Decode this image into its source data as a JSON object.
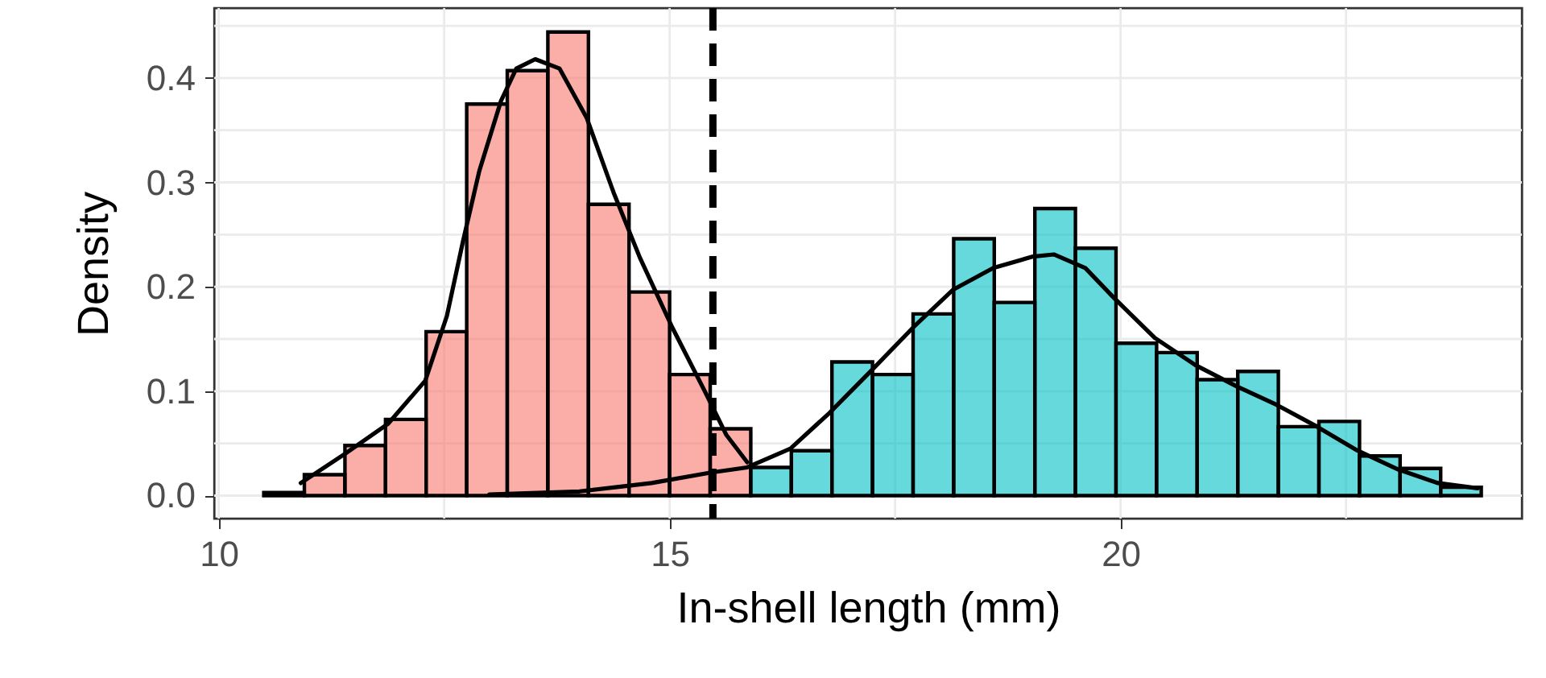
{
  "chart_data": {
    "type": "histogram",
    "xlabel": "In-shell length (mm)",
    "ylabel": "Density",
    "bins": [
      10.5,
      10.95,
      11.4,
      11.85,
      12.3,
      12.75,
      13.2,
      13.65,
      14.1,
      14.55,
      15.0,
      15.45,
      15.9,
      16.35,
      16.8,
      17.25,
      17.7,
      18.15,
      18.6,
      19.05,
      19.5,
      19.95,
      20.4,
      20.85,
      21.3,
      21.75,
      22.2,
      22.65,
      23.1,
      23.55,
      24.0
    ],
    "series": [
      {
        "color": "#f8766d",
        "values": [
          0.003,
          0.02,
          0.048,
          0.073,
          0.157,
          0.375,
          0.407,
          0.444,
          0.279,
          0.195,
          0.116,
          0.064,
          null,
          null,
          null,
          null,
          null,
          null,
          null,
          null,
          null,
          null,
          null,
          null,
          null,
          null,
          null,
          null,
          null,
          null
        ]
      },
      {
        "color": "#00bfc4",
        "values": [
          null,
          null,
          null,
          null,
          null,
          null,
          null,
          null,
          null,
          null,
          null,
          null,
          0.027,
          0.043,
          0.128,
          0.116,
          0.174,
          0.246,
          0.185,
          0.275,
          0.237,
          0.146,
          0.137,
          0.111,
          0.119,
          0.066,
          0.071,
          0.038,
          0.026,
          0.008
        ]
      },
      {
        "type": "line",
        "color": "#000000",
        "x": [
          10.91,
          11.4,
          11.88,
          12.29,
          12.53,
          12.71,
          12.89,
          13.13,
          13.3,
          13.51,
          13.78,
          14.08,
          14.38,
          14.67,
          15.03,
          15.39,
          15.63,
          15.86
        ],
        "values": [
          0.012,
          0.04,
          0.069,
          0.11,
          0.172,
          0.244,
          0.311,
          0.378,
          0.409,
          0.418,
          0.409,
          0.362,
          0.29,
          0.228,
          0.161,
          0.1,
          0.058,
          0.032
        ]
      },
      {
        "type": "line",
        "color": "#000000",
        "x": [
          13.0,
          14.0,
          14.8,
          15.45,
          15.86,
          16.34,
          16.77,
          17.24,
          17.7,
          18.14,
          18.59,
          19.03,
          19.26,
          19.61,
          19.92,
          20.38,
          20.83,
          21.28,
          21.73,
          22.18,
          22.63,
          23.08,
          23.52,
          23.96
        ],
        "values": [
          0.001,
          0.004,
          0.012,
          0.022,
          0.027,
          0.045,
          0.079,
          0.12,
          0.161,
          0.197,
          0.218,
          0.229,
          0.231,
          0.218,
          0.19,
          0.151,
          0.125,
          0.105,
          0.087,
          0.066,
          0.043,
          0.025,
          0.012,
          0.007
        ]
      }
    ],
    "xlim": [
      9.95,
      24.45
    ],
    "ylim": [
      -0.022,
      0.467
    ],
    "xticks": [
      10,
      {
        "value": 12.5,
        "label": null
      },
      15,
      {
        "value": 17.5,
        "label": null
      },
      20,
      {
        "value": 22.5,
        "label": null
      }
    ],
    "yticks": [
      {
        "value": 0,
        "label": "0.0"
      },
      {
        "value": 0.05,
        "label": null
      },
      0.1,
      {
        "value": 0.15,
        "label": null
      },
      0.2,
      {
        "value": 0.25,
        "label": null
      },
      0.3,
      {
        "value": 0.35,
        "label": null
      },
      0.4,
      {
        "value": 0.45,
        "label": null
      }
    ],
    "grid": true,
    "ref_lines": [
      {
        "axis": "x",
        "value": 15.48,
        "color": "#000000",
        "line_style": "dashed"
      }
    ]
  }
}
